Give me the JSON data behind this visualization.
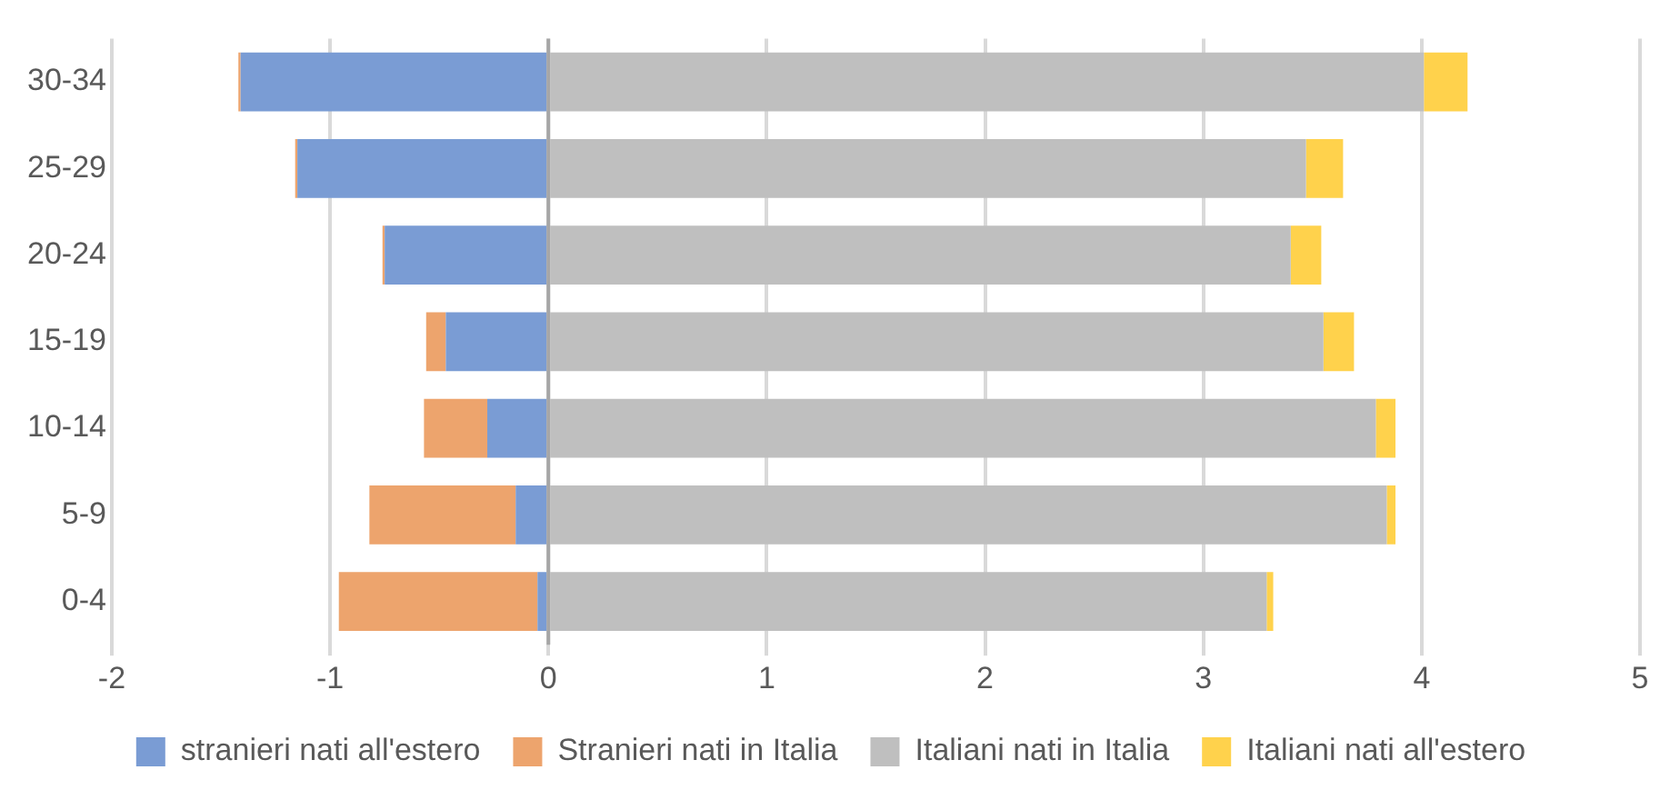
{
  "chart_data": {
    "type": "bar",
    "orientation": "horizontal",
    "stacked": true,
    "categories": [
      "30-34",
      "25-29",
      "20-24",
      "15-19",
      "10-14",
      "5-9",
      "0-4"
    ],
    "series": [
      {
        "name": "stranieri nati all'estero",
        "color": "#7a9cd4",
        "values": [
          -1.41,
          -1.15,
          -0.75,
          -0.47,
          -0.28,
          -0.15,
          -0.05
        ]
      },
      {
        "name": "Stranieri nati in Italia",
        "color": "#eda46d",
        "values": [
          -0.01,
          -0.01,
          -0.01,
          -0.09,
          -0.29,
          -0.67,
          -0.91
        ]
      },
      {
        "name": "Italiani nati in Italia",
        "color": "#bfbfbf",
        "values": [
          4.01,
          3.47,
          3.4,
          3.55,
          3.79,
          3.84,
          3.29
        ]
      },
      {
        "name": "Italiani nati all'estero",
        "color": "#ffd24c",
        "values": [
          0.2,
          0.17,
          0.14,
          0.14,
          0.09,
          0.04,
          0.03
        ]
      }
    ],
    "xlim": [
      -2,
      5
    ],
    "xticks": [
      -2,
      -1,
      0,
      1,
      2,
      3,
      4,
      5
    ],
    "grid": "x",
    "legend": "bottom"
  }
}
